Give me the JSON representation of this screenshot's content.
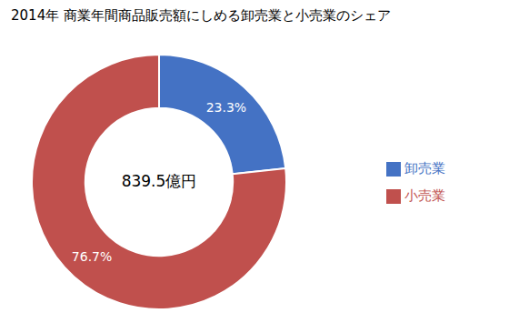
{
  "chart_data": {
    "type": "pie",
    "title": "2014年 商業年間商品販売額にしめる卸売業と小売業のシェア",
    "categories": [
      "卸売業",
      "小売業"
    ],
    "values": [
      23.3,
      76.7
    ],
    "colors": [
      "#4472C4",
      "#C0504D"
    ],
    "data_labels": true,
    "value_labels": [
      "23.3%",
      "76.7%"
    ],
    "annotations": [
      "839.5億円"
    ],
    "legend": "right"
  }
}
